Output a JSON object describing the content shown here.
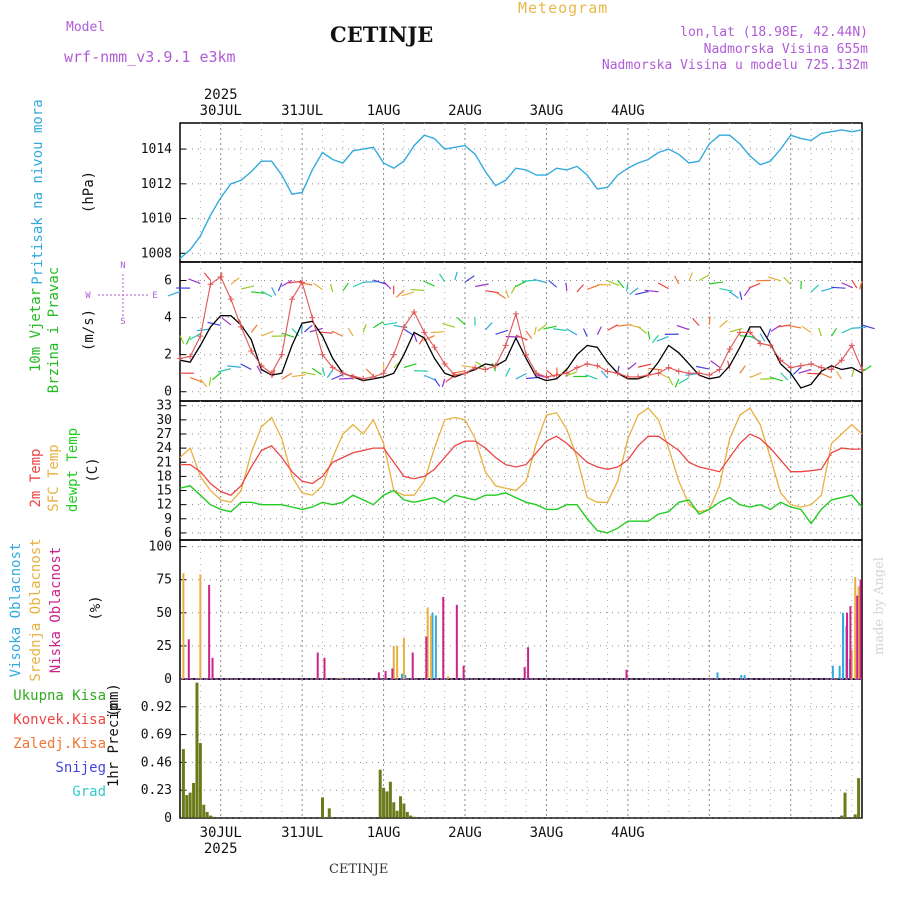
{
  "header": {
    "model_label": "Model",
    "model_name": "wrf-nmm_v3.9.1 e3km",
    "station": "CETINJE",
    "meteogram": "Meteogram",
    "lonlat": "lon,lat (18.98E, 42.44N)",
    "altitude": "Nadmorska Visina 655m",
    "model_altitude": "Nadmorska Visina u modelu 725.132m"
  },
  "footer": {
    "station": "CETINJE",
    "watermark": "made by Angel"
  },
  "time_axis": {
    "year": "2025",
    "day_labels": [
      "30JUL",
      "31JUL",
      "1AUG",
      "2AUG",
      "3AUG",
      "4AUG"
    ]
  },
  "colors": {
    "pressure": "#33aadd",
    "temp2m": "#ee4444",
    "sfc": "#e8b040",
    "dew": "#22cc22",
    "high": "#33aadd",
    "mid": "#e8b040",
    "low": "#cc2288",
    "total": "#33aa22",
    "conv": "#ee4444",
    "frozen": "#ee7733",
    "snow": "#4444dd",
    "grad": "#33cccc",
    "precip_bar": "#6b7a1a"
  },
  "chart_data": [
    {
      "type": "line",
      "name": "pressure",
      "ylabel": [
        "Pritisak na nivou mora",
        "(hPa)"
      ],
      "ylim": [
        1007.5,
        1015.5
      ],
      "yticks": [
        1008,
        1010,
        1012,
        1014
      ],
      "x_hours": [
        0,
        3,
        6,
        9,
        12,
        15,
        18,
        21,
        24,
        27,
        30,
        33,
        36,
        39,
        42,
        45,
        48,
        51,
        54,
        57,
        60,
        63,
        66,
        69,
        72,
        75,
        78,
        81,
        84,
        87,
        90,
        93,
        96,
        99,
        102,
        105,
        108,
        111,
        114,
        117,
        120,
        123,
        126,
        129,
        132,
        135,
        138,
        141,
        144,
        147,
        150,
        153,
        156,
        159,
        162,
        165,
        168,
        171,
        174,
        177,
        180,
        183,
        186,
        189,
        192,
        195,
        198,
        201
      ],
      "values": [
        1007.7,
        1008.2,
        1009.0,
        1010.2,
        1011.2,
        1012.0,
        1012.2,
        1012.7,
        1013.3,
        1013.3,
        1012.5,
        1011.4,
        1011.5,
        1012.8,
        1013.8,
        1013.4,
        1013.2,
        1013.9,
        1014.0,
        1014.1,
        1013.2,
        1012.9,
        1013.3,
        1014.2,
        1014.8,
        1014.6,
        1014.0,
        1014.1,
        1014.2,
        1013.7,
        1012.7,
        1011.9,
        1012.2,
        1012.9,
        1012.8,
        1012.5,
        1012.5,
        1012.9,
        1012.8,
        1013.0,
        1012.5,
        1011.7,
        1011.8,
        1012.5,
        1012.9,
        1013.2,
        1013.4,
        1013.8,
        1014.0,
        1013.7,
        1013.2,
        1013.3,
        1014.3,
        1014.8,
        1014.8,
        1014.3,
        1013.6,
        1013.1,
        1013.3,
        1014.0,
        1014.8,
        1014.6,
        1014.5,
        1014.9,
        1015.0,
        1015.1,
        1015.0,
        1015.1
      ]
    },
    {
      "type": "line",
      "name": "wind",
      "ylabel": [
        "10m Vjetar",
        "Brzina i Pravac",
        "(m/s)"
      ],
      "compass": [
        "N",
        "W",
        "E",
        "S"
      ],
      "ylim": [
        -0.5,
        7.0
      ],
      "yticks": [
        0,
        2,
        4,
        6
      ],
      "x_hours": [
        0,
        3,
        6,
        9,
        12,
        15,
        18,
        21,
        24,
        27,
        30,
        33,
        36,
        39,
        42,
        45,
        48,
        51,
        54,
        57,
        60,
        63,
        66,
        69,
        72,
        75,
        78,
        81,
        84,
        87,
        90,
        93,
        96,
        99,
        102,
        105,
        108,
        111,
        114,
        117,
        120,
        123,
        126,
        129,
        132,
        135,
        138,
        141,
        144,
        147,
        150,
        153,
        156,
        159,
        162,
        165,
        168,
        171,
        174,
        177,
        180,
        183,
        186,
        189,
        192,
        195,
        198,
        201
      ],
      "series": [
        {
          "name": "mean speed",
          "values": [
            1.7,
            1.6,
            2.5,
            3.5,
            4.1,
            4.1,
            3.6,
            2.8,
            1.2,
            0.9,
            1.0,
            2.5,
            3.7,
            3.8,
            3.0,
            1.8,
            1.0,
            0.8,
            0.6,
            0.7,
            0.8,
            1.0,
            2.0,
            3.2,
            2.9,
            1.8,
            1.0,
            0.8,
            1.0,
            1.2,
            1.5,
            1.4,
            1.7,
            2.9,
            1.8,
            0.8,
            0.6,
            0.7,
            1.2,
            2.0,
            2.5,
            2.4,
            1.6,
            1.0,
            0.7,
            0.7,
            0.9,
            1.6,
            2.5,
            2.1,
            1.5,
            0.9,
            0.7,
            0.8,
            1.4,
            2.4,
            3.5,
            3.5,
            2.6,
            1.5,
            1.0,
            0.2,
            0.4,
            1.1,
            1.4,
            1.2,
            1.3,
            1.0
          ]
        },
        {
          "name": "gust",
          "values": [
            1.8,
            1.9,
            3.0,
            5.8,
            6.2,
            5.0,
            3.5,
            2.2,
            1.4,
            1.0,
            2.0,
            5.0,
            5.9,
            4.0,
            2.0,
            1.3,
            1.0,
            0.8,
            0.7,
            0.8,
            1.0,
            2.0,
            3.5,
            4.3,
            3.2,
            2.4,
            1.5,
            0.9,
            1.0,
            1.3,
            1.2,
            1.4,
            2.5,
            4.2,
            2.0,
            1.0,
            0.8,
            0.9,
            1.0,
            1.3,
            1.5,
            1.4,
            1.1,
            1.0,
            0.8,
            0.8,
            0.9,
            1.0,
            1.3,
            1.1,
            1.0,
            1.0,
            0.9,
            1.2,
            2.3,
            3.2,
            3.2,
            2.6,
            2.5,
            1.7,
            1.3,
            1.4,
            1.5,
            1.3,
            1.2,
            1.7,
            2.5,
            1.2
          ]
        }
      ]
    },
    {
      "type": "line",
      "name": "temperature",
      "ylabel": [
        "2m Temp",
        "SFC Temp",
        "dewpt Temp",
        "(C)"
      ],
      "ylim": [
        4.5,
        34
      ],
      "yticks": [
        6,
        9,
        12,
        15,
        18,
        21,
        24,
        27,
        30,
        33
      ],
      "x_hours": [
        0,
        3,
        6,
        9,
        12,
        15,
        18,
        21,
        24,
        27,
        30,
        33,
        36,
        39,
        42,
        45,
        48,
        51,
        54,
        57,
        60,
        63,
        66,
        69,
        72,
        75,
        78,
        81,
        84,
        87,
        90,
        93,
        96,
        99,
        102,
        105,
        108,
        111,
        114,
        117,
        120,
        123,
        126,
        129,
        132,
        135,
        138,
        141,
        144,
        147,
        150,
        153,
        156,
        159,
        162,
        165,
        168,
        171,
        174,
        177,
        180,
        183,
        186,
        189,
        192,
        195,
        198,
        201
      ],
      "series": [
        {
          "name": "2m Temp",
          "values": [
            20.5,
            20.5,
            19.0,
            16.5,
            14.8,
            14.0,
            16.0,
            20.0,
            23.5,
            24.5,
            22.0,
            19.0,
            17.0,
            16.5,
            18.0,
            21.0,
            22.0,
            23.0,
            23.5,
            24.0,
            24.0,
            21.0,
            18.0,
            17.5,
            18.0,
            19.5,
            22.0,
            24.5,
            25.5,
            25.5,
            24.0,
            22.0,
            20.5,
            20.0,
            20.5,
            23.0,
            25.5,
            26.5,
            25.0,
            23.0,
            21.0,
            20.0,
            19.5,
            20.0,
            21.5,
            24.5,
            26.5,
            26.5,
            25.0,
            23.5,
            21.0,
            20.0,
            19.5,
            19.0,
            22.0,
            25.0,
            27.0,
            26.0,
            24.0,
            21.5,
            19.0,
            19.0,
            19.2,
            19.5,
            23.0,
            24.0,
            23.8,
            23.8
          ]
        },
        {
          "name": "SFC Temp",
          "values": [
            22.0,
            24.0,
            18.0,
            15.0,
            13.0,
            12.5,
            15.0,
            23.0,
            28.5,
            30.5,
            26.0,
            18.0,
            14.5,
            14.0,
            16.0,
            22.0,
            27.0,
            29.0,
            27.0,
            30.0,
            25.0,
            15.0,
            14.0,
            14.0,
            17.0,
            24.0,
            30.0,
            30.5,
            30.0,
            26.0,
            19.0,
            16.0,
            15.5,
            15.0,
            17.0,
            25.0,
            31.0,
            31.5,
            28.0,
            22.0,
            13.5,
            12.5,
            12.5,
            17.0,
            26.0,
            31.0,
            32.5,
            30.0,
            24.0,
            17.0,
            12.0,
            10.5,
            11.0,
            16.0,
            26.0,
            31.0,
            32.5,
            29.0,
            22.0,
            14.5,
            12.0,
            11.5,
            12.0,
            14.0,
            25.0,
            27.0,
            29.0,
            27.0
          ]
        },
        {
          "name": "dewpt Temp",
          "values": [
            15.5,
            16.0,
            14.0,
            12.0,
            11.0,
            10.5,
            12.5,
            12.5,
            12.0,
            12.0,
            12.0,
            11.5,
            11.0,
            11.5,
            12.5,
            12.0,
            12.5,
            14.0,
            13.0,
            12.0,
            14.0,
            15.0,
            13.0,
            12.5,
            13.0,
            13.5,
            12.5,
            14.0,
            13.5,
            13.0,
            14.0,
            14.0,
            14.5,
            13.5,
            12.5,
            12.0,
            11.0,
            11.0,
            12.0,
            12.0,
            9.0,
            6.5,
            6.0,
            7.0,
            8.5,
            8.5,
            8.5,
            10.0,
            10.5,
            12.5,
            13.0,
            10.0,
            11.0,
            12.5,
            13.5,
            12.0,
            11.5,
            12.0,
            11.0,
            12.5,
            11.5,
            11.0,
            8.0,
            11.0,
            13.0,
            13.5,
            14.0,
            11.5
          ]
        }
      ]
    },
    {
      "type": "bar",
      "name": "clouds",
      "ylabel": [
        "Visoka Oblacnost",
        "Srednja Oblacnost",
        "Niska Oblacnost",
        "(%)"
      ],
      "ylim": [
        0,
        105
      ],
      "yticks": [
        0,
        25,
        50,
        75,
        100
      ],
      "series": [
        {
          "name": "Visoka Oblacnost",
          "hours": [
            66,
            67,
            75,
            76,
            159,
            166,
            167,
            193,
            195,
            196,
            197,
            198
          ],
          "values": [
            4,
            3,
            50,
            48,
            5,
            3,
            3,
            10,
            10,
            50,
            40,
            15
          ]
        },
        {
          "name": "Srednja Oblacnost",
          "hours": [
            1,
            6,
            47,
            63,
            64,
            66,
            73,
            74,
            79,
            198,
            199,
            200
          ],
          "values": [
            80,
            79,
            1,
            25,
            25,
            31,
            54,
            48,
            2,
            22,
            77,
            70
          ]
        },
        {
          "name": "Niska Oblacnost",
          "hours": [
            2,
            8,
            9,
            40,
            42,
            58,
            60,
            62,
            68,
            72,
            77,
            81,
            83,
            101,
            102,
            131,
            196,
            197,
            199,
            200
          ],
          "values": [
            30,
            71,
            16,
            20,
            16,
            5,
            6,
            8,
            20,
            32,
            62,
            56,
            10,
            9,
            24,
            7,
            50,
            55,
            63,
            75
          ]
        }
      ]
    },
    {
      "type": "bar",
      "name": "precip",
      "ylabel": [
        "1hr Precip",
        "(mm)"
      ],
      "legend": [
        "Ukupna Kisa",
        "Konvek.Kisa",
        "Zaledj.Kisa",
        "Snijeg",
        "Grad"
      ],
      "ylim": [
        0,
        1.15
      ],
      "yticks": [
        0,
        0.23,
        0.46,
        0.69,
        0.92
      ],
      "hours": [
        1,
        2,
        3,
        4,
        5,
        6,
        7,
        8,
        9,
        10,
        42,
        44,
        59,
        60,
        61,
        62,
        63,
        64,
        65,
        66,
        67,
        68,
        69,
        195,
        196,
        199,
        200
      ],
      "values": [
        0.57,
        0.19,
        0.21,
        0.29,
        1.12,
        0.62,
        0.11,
        0.05,
        0.02,
        0.01,
        0.17,
        0.08,
        0.4,
        0.25,
        0.22,
        0.3,
        0.13,
        0.06,
        0.18,
        0.12,
        0.05,
        0.02,
        0.01,
        0.02,
        0.21,
        0.03,
        0.33
      ]
    }
  ]
}
